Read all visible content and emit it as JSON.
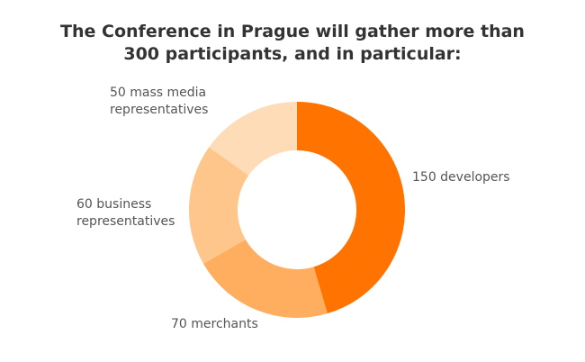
{
  "chart_data": {
    "type": "donut",
    "title": [
      "The Conference in Prague will gather more than",
      "300 participants, and in particular:"
    ],
    "values": [
      150,
      70,
      60,
      50
    ],
    "value_labels": [
      "150 developers",
      "70 merchants",
      "60 business representatives",
      "50 mass media representatives"
    ],
    "colors": [
      "#ff7300",
      "#ffad5e",
      "#ffc68b",
      "#ffdcb8"
    ]
  }
}
